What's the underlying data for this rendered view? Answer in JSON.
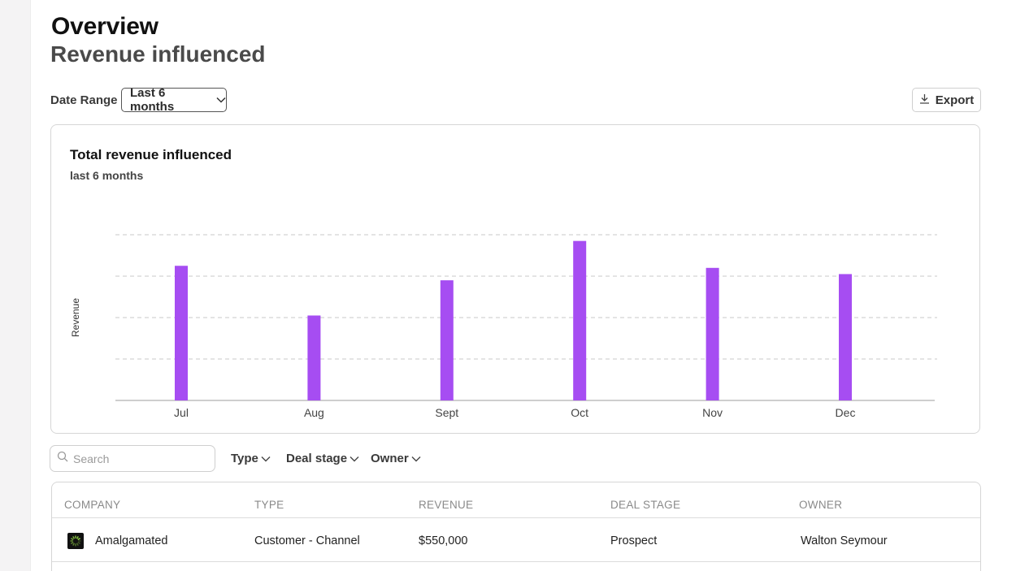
{
  "header": {
    "title": "Overview",
    "subtitle": "Revenue influenced"
  },
  "controls": {
    "date_range_label": "Date Range",
    "date_range_value": "Last 6 months",
    "export_label": "Export"
  },
  "chart_card": {
    "title": "Total revenue influenced",
    "subtitle": "last 6 months"
  },
  "chart_data": {
    "type": "bar",
    "categories": [
      "Jul",
      "Aug",
      "Sept",
      "Oct",
      "Nov",
      "Dec"
    ],
    "values": [
      3.25,
      2.05,
      2.9,
      3.85,
      3.2,
      3.05
    ],
    "ylabel": "Revenue",
    "xlabel": "",
    "ylim": [
      0,
      4
    ],
    "grid": true,
    "bar_color": "#a64df2"
  },
  "table_controls": {
    "search_placeholder": "Search",
    "filters": [
      "Type",
      "Deal stage",
      "Owner"
    ]
  },
  "table": {
    "columns": [
      "COMPANY",
      "TYPE",
      "REVENUE",
      "DEAL STAGE",
      "OWNER"
    ],
    "rows": [
      {
        "company": "Amalgamated",
        "type": "Customer - Channel",
        "revenue": "$550,000",
        "deal_stage": "Prospect",
        "owner": "Walton Seymour",
        "logo_icon": "spinner-logo-icon",
        "logo_color": "#9be04a"
      }
    ]
  }
}
